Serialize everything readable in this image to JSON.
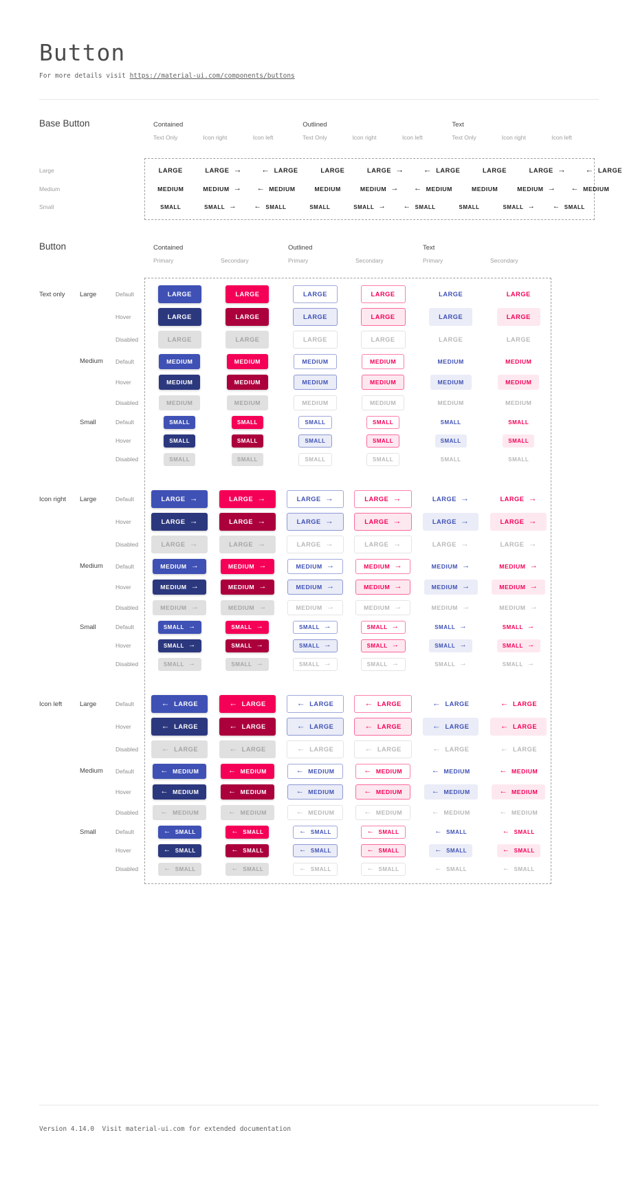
{
  "page": {
    "title": "Button",
    "subtitle_prefix": "For more details visit ",
    "subtitle_link": "https://material-ui.com/components/buttons",
    "footer": "Version 4.14.0  Visit material-ui.com for extended documentation"
  },
  "colors": {
    "primary": "#3f51b5",
    "primary_dark": "#2c387e",
    "secondary": "#f50057",
    "secondary_dark": "#ab003c",
    "disabled_bg": "#e0e0e0"
  },
  "icons": {
    "arrow_right": "→",
    "arrow_left": "←"
  },
  "base_section": {
    "heading": "Base Button",
    "groups": [
      {
        "label": "Contained"
      },
      {
        "label": "Outlined"
      },
      {
        "label": "Text"
      }
    ],
    "subcolumns": [
      {
        "label": "Text Only",
        "icon": "none"
      },
      {
        "label": "Icon right",
        "icon": "right"
      },
      {
        "label": "Icon left",
        "icon": "left"
      }
    ],
    "rows": [
      {
        "label": "Large",
        "text": "LARGE",
        "key": "large"
      },
      {
        "label": "Medium",
        "text": "MEDIUM",
        "key": "medium"
      },
      {
        "label": "Small",
        "text": "SMALL",
        "key": "small"
      }
    ]
  },
  "button_section": {
    "heading": "Button",
    "groups": [
      {
        "label": "Contained"
      },
      {
        "label": "Outlined"
      },
      {
        "label": "Text"
      }
    ],
    "columns": [
      {
        "group": "Contained",
        "label": "Primary",
        "variant": "contained",
        "color": "primary"
      },
      {
        "group": "Contained",
        "label": "Secondary",
        "variant": "contained",
        "color": "secondary"
      },
      {
        "group": "Outlined",
        "label": "Primary",
        "variant": "outlined",
        "color": "primary"
      },
      {
        "group": "Outlined",
        "label": "Secondary",
        "variant": "outlined",
        "color": "secondary"
      },
      {
        "group": "Text",
        "label": "Primary",
        "variant": "text",
        "color": "primary"
      },
      {
        "group": "Text",
        "label": "Secondary",
        "variant": "text",
        "color": "secondary"
      }
    ],
    "icon_groups": [
      {
        "label": "Text only",
        "icon": "none"
      },
      {
        "label": "Icon right",
        "icon": "right"
      },
      {
        "label": "Icon left",
        "icon": "left"
      }
    ],
    "sizes": [
      {
        "label": "Large",
        "text": "LARGE",
        "key": "large"
      },
      {
        "label": "Medium",
        "text": "MEDIUM",
        "key": "medium"
      },
      {
        "label": "Small",
        "text": "SMALL",
        "key": "small"
      }
    ],
    "states": [
      {
        "label": "Default",
        "key": "default"
      },
      {
        "label": "Hover",
        "key": "hover"
      },
      {
        "label": "Disabled",
        "key": "disabled"
      }
    ]
  }
}
